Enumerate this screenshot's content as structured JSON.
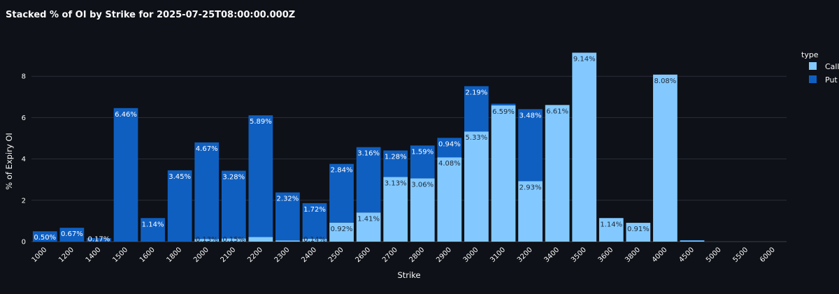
{
  "chart_data": {
    "type": "bar",
    "barmode": "stack",
    "title": "Stacked % of OI by Strike for 2025-07-25T08:00:00.000Z",
    "xlabel": "Strike",
    "ylabel": "% of Expiry OI",
    "ylim": [
      0,
      10
    ],
    "yticks": [
      "0",
      "2",
      "4",
      "6",
      "8"
    ],
    "grid": true,
    "legend": {
      "title": "type",
      "placement": "top-right"
    },
    "categories": [
      "1000",
      "1200",
      "1400",
      "1500",
      "1600",
      "1800",
      "2000",
      "2100",
      "2200",
      "2300",
      "2400",
      "2500",
      "2600",
      "2700",
      "2800",
      "2900",
      "3000",
      "3100",
      "3200",
      "3400",
      "3500",
      "3600",
      "3800",
      "4000",
      "4500",
      "5000",
      "5500",
      "6000"
    ],
    "series": [
      {
        "name": "Call",
        "color": "#83c9ff",
        "values": [
          0,
          0,
          0,
          0,
          0,
          0,
          0.13,
          0.15,
          0.22,
          0.06,
          0.14,
          0.92,
          1.41,
          3.13,
          3.06,
          4.08,
          5.33,
          6.59,
          2.93,
          6.61,
          9.14,
          1.14,
          0.91,
          8.08,
          0.06,
          0,
          0,
          0
        ],
        "labels": [
          "",
          "",
          "",
          "",
          "",
          "",
          "0.13%",
          "0.15%",
          "",
          "",
          "0.14%",
          "0.92%",
          "1.41%",
          "3.13%",
          "3.06%",
          "4.08%",
          "5.33%",
          "6.59%",
          "2.93%",
          "6.61%",
          "9.14%",
          "1.14%",
          "0.91%",
          "8.08%",
          "",
          "",
          "",
          ""
        ]
      },
      {
        "name": "Put",
        "color": "#0f5fc1",
        "values": [
          0.5,
          0.67,
          0.17,
          6.46,
          1.14,
          3.45,
          4.67,
          3.28,
          5.89,
          2.32,
          1.72,
          2.84,
          3.16,
          1.28,
          1.59,
          0.94,
          2.19,
          0.08,
          3.48,
          0,
          0,
          0,
          0,
          0,
          0.01,
          0,
          0,
          0
        ],
        "labels": [
          "0.50%",
          "0.67%",
          "0.17%",
          "6.46%",
          "1.14%",
          "3.45%",
          "4.67%",
          "3.28%",
          "5.89%",
          "2.32%",
          "1.72%",
          "2.84%",
          "3.16%",
          "1.28%",
          "1.59%",
          "0.94%",
          "2.19%",
          "",
          "3.48%",
          "",
          "",
          "",
          "",
          "",
          "",
          "",
          "",
          ""
        ]
      }
    ]
  }
}
